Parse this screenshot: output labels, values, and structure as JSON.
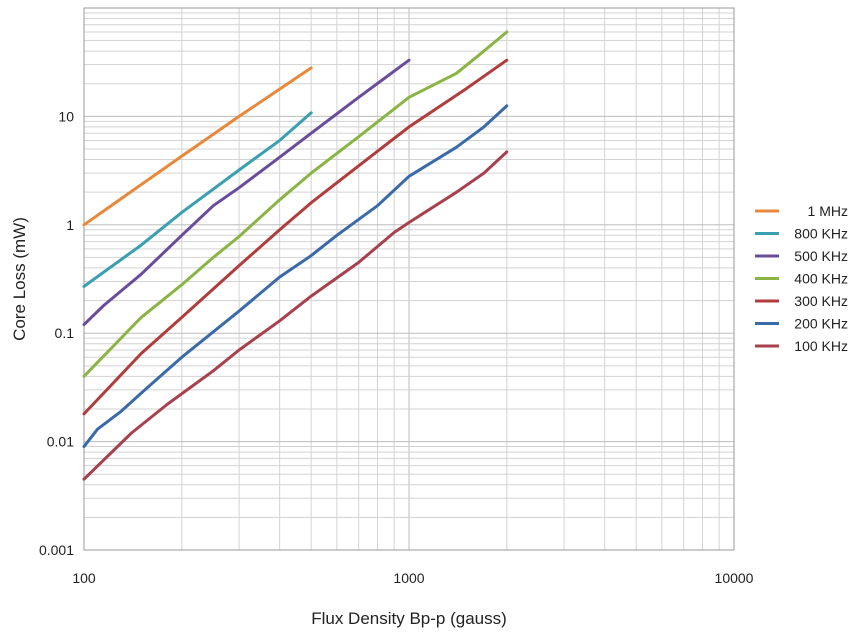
{
  "chart_data": {
    "type": "line",
    "title": "",
    "xlabel": "Flux Density Bp-p (gauss)",
    "ylabel": "Core Loss (mW)",
    "x_scale": "log",
    "y_scale": "log",
    "xlim": [
      100,
      10000
    ],
    "ylim": [
      0.001,
      100
    ],
    "x_tick_labels": [
      "100",
      "1000",
      "10000"
    ],
    "y_tick_labels": [
      "0.001",
      "0.01",
      "0.1",
      "1",
      "10"
    ],
    "grid": true,
    "legend_position": "right",
    "series": [
      {
        "name": "1 MHz",
        "color": "#e8883a",
        "points": [
          [
            100,
            1.0
          ],
          [
            200,
            4.3
          ],
          [
            300,
            10
          ],
          [
            500,
            28
          ]
        ]
      },
      {
        "name": "800 KHz",
        "color": "#3a9fb0",
        "points": [
          [
            100,
            0.27
          ],
          [
            150,
            0.65
          ],
          [
            200,
            1.3
          ],
          [
            300,
            3.2
          ],
          [
            400,
            6.0
          ],
          [
            500,
            10.8
          ]
        ]
      },
      {
        "name": "500 KHz",
        "color": "#6a4c9c",
        "points": [
          [
            100,
            0.12
          ],
          [
            115,
            0.18
          ],
          [
            150,
            0.35
          ],
          [
            200,
            0.8
          ],
          [
            250,
            1.5
          ],
          [
            300,
            2.2
          ],
          [
            400,
            4.2
          ],
          [
            500,
            7.0
          ],
          [
            700,
            15
          ],
          [
            1000,
            33
          ]
        ]
      },
      {
        "name": "400 KHz",
        "color": "#8ab444",
        "points": [
          [
            100,
            0.04
          ],
          [
            150,
            0.14
          ],
          [
            200,
            0.28
          ],
          [
            250,
            0.5
          ],
          [
            300,
            0.78
          ],
          [
            400,
            1.7
          ],
          [
            500,
            3.0
          ],
          [
            700,
            6.5
          ],
          [
            1000,
            15
          ],
          [
            1400,
            25
          ],
          [
            1700,
            40
          ],
          [
            2000,
            60
          ]
        ]
      },
      {
        "name": "300 KHz",
        "color": "#b03c3c",
        "points": [
          [
            100,
            0.018
          ],
          [
            150,
            0.065
          ],
          [
            200,
            0.14
          ],
          [
            300,
            0.42
          ],
          [
            400,
            0.9
          ],
          [
            500,
            1.6
          ],
          [
            700,
            3.5
          ],
          [
            1000,
            8.0
          ],
          [
            1500,
            18
          ],
          [
            2000,
            33
          ]
        ]
      },
      {
        "name": "200 KHz",
        "color": "#3a6aa8",
        "points": [
          [
            100,
            0.009
          ],
          [
            110,
            0.013
          ],
          [
            130,
            0.019
          ],
          [
            150,
            0.028
          ],
          [
            200,
            0.06
          ],
          [
            300,
            0.16
          ],
          [
            400,
            0.33
          ],
          [
            500,
            0.52
          ],
          [
            600,
            0.8
          ],
          [
            800,
            1.5
          ],
          [
            1000,
            2.8
          ],
          [
            1400,
            5.2
          ],
          [
            1700,
            8.0
          ],
          [
            2000,
            12.5
          ]
        ]
      },
      {
        "name": "100 KHz",
        "color": "#a8404e",
        "points": [
          [
            100,
            0.0045
          ],
          [
            140,
            0.012
          ],
          [
            180,
            0.022
          ],
          [
            250,
            0.045
          ],
          [
            300,
            0.07
          ],
          [
            400,
            0.13
          ],
          [
            500,
            0.22
          ],
          [
            700,
            0.45
          ],
          [
            900,
            0.85
          ],
          [
            1000,
            1.05
          ],
          [
            1400,
            2.0
          ],
          [
            1700,
            3.0
          ],
          [
            2000,
            4.7
          ]
        ]
      }
    ]
  }
}
